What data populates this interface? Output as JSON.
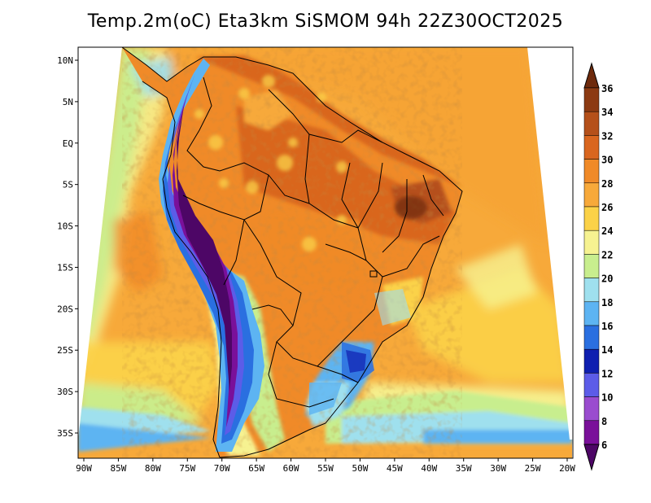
{
  "title": "Temp.2m(oC) Eta3km SiSMOM 94h 22Z30OCT2025",
  "map": {
    "lon_labels": [
      "90W",
      "85W",
      "80W",
      "75W",
      "70W",
      "65W",
      "60W",
      "55W",
      "50W",
      "45W",
      "40W",
      "35W",
      "30W",
      "25W",
      "20W"
    ],
    "lat_labels": [
      "10N",
      "5N",
      "EQ",
      "5S",
      "10S",
      "15S",
      "20S",
      "25S",
      "30S",
      "35S"
    ],
    "lon_range": [
      -90,
      -20
    ],
    "lat_range": [
      -38,
      12
    ]
  },
  "colorbar": {
    "levels": [
      "36",
      "34",
      "32",
      "30",
      "28",
      "26",
      "24",
      "22",
      "20",
      "18",
      "16",
      "14",
      "12",
      "10",
      "8",
      "6"
    ],
    "colors": [
      "#6e2a0c",
      "#8c3a12",
      "#b5501a",
      "#d9661f",
      "#f08a28",
      "#f7a93a",
      "#fbd248",
      "#f6f291",
      "#c8ee8e",
      "#9fe0ee",
      "#5db4f2",
      "#2a6fe0",
      "#0f1fb0",
      "#5c5ce8",
      "#9a4ccf",
      "#7a109a",
      "#4d0666"
    ]
  }
}
